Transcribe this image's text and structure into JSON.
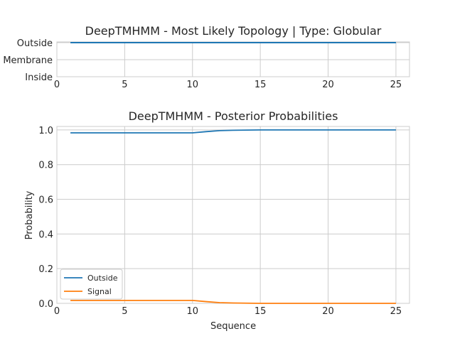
{
  "chart_data": [
    {
      "type": "line",
      "title": "DeepTMHMM - Most Likely Topology | Type: Globular",
      "xlabel": "",
      "ylabel": "",
      "xlim": [
        0,
        26
      ],
      "xticks": [
        0,
        5,
        10,
        15,
        20,
        25
      ],
      "y_categories": [
        "Outside",
        "Membrane",
        "Inside"
      ],
      "grid": true,
      "series": [
        {
          "color": "#1f77b4",
          "x": [
            1,
            2,
            3,
            4,
            5,
            6,
            7,
            8,
            9,
            10,
            11,
            12,
            13,
            14,
            15,
            16,
            17,
            18,
            19,
            20,
            21,
            22,
            23,
            24,
            25
          ],
          "values": [
            "Outside",
            "Outside",
            "Outside",
            "Outside",
            "Outside",
            "Outside",
            "Outside",
            "Outside",
            "Outside",
            "Outside",
            "Outside",
            "Outside",
            "Outside",
            "Outside",
            "Outside",
            "Outside",
            "Outside",
            "Outside",
            "Outside",
            "Outside",
            "Outside",
            "Outside",
            "Outside",
            "Outside",
            "Outside"
          ]
        }
      ]
    },
    {
      "type": "line",
      "title": "DeepTMHMM - Posterior Probabilities",
      "xlabel": "Sequence",
      "ylabel": "Probability",
      "xlim": [
        0,
        26
      ],
      "ylim": [
        0,
        1.02
      ],
      "xticks": [
        0,
        5,
        10,
        15,
        20,
        25
      ],
      "yticks": [
        "0.0",
        "0.2",
        "0.4",
        "0.6",
        "0.8",
        "1.0"
      ],
      "grid": true,
      "legend_position": "lower-left",
      "series": [
        {
          "name": "Outside",
          "color": "#1f77b4",
          "x": [
            1,
            2,
            3,
            4,
            5,
            6,
            7,
            8,
            9,
            10,
            11,
            12,
            13,
            14,
            15,
            16,
            17,
            18,
            19,
            20,
            21,
            22,
            23,
            24,
            25
          ],
          "values": [
            0.983,
            0.983,
            0.983,
            0.983,
            0.983,
            0.983,
            0.983,
            0.983,
            0.983,
            0.983,
            0.99,
            0.996,
            0.998,
            0.999,
            1.0,
            1.0,
            1.0,
            1.0,
            1.0,
            1.0,
            1.0,
            1.0,
            1.0,
            1.0,
            1.0
          ]
        },
        {
          "name": "Signal",
          "color": "#ff7f0e",
          "x": [
            1,
            2,
            3,
            4,
            5,
            6,
            7,
            8,
            9,
            10,
            11,
            12,
            13,
            14,
            15,
            16,
            17,
            18,
            19,
            20,
            21,
            22,
            23,
            24,
            25
          ],
          "values": [
            0.017,
            0.017,
            0.017,
            0.017,
            0.017,
            0.017,
            0.017,
            0.017,
            0.017,
            0.017,
            0.01,
            0.004,
            0.002,
            0.001,
            0.0,
            0.0,
            0.0,
            0.0,
            0.0,
            0.0,
            0.0,
            0.0,
            0.0,
            0.0,
            0.0
          ]
        }
      ]
    }
  ]
}
